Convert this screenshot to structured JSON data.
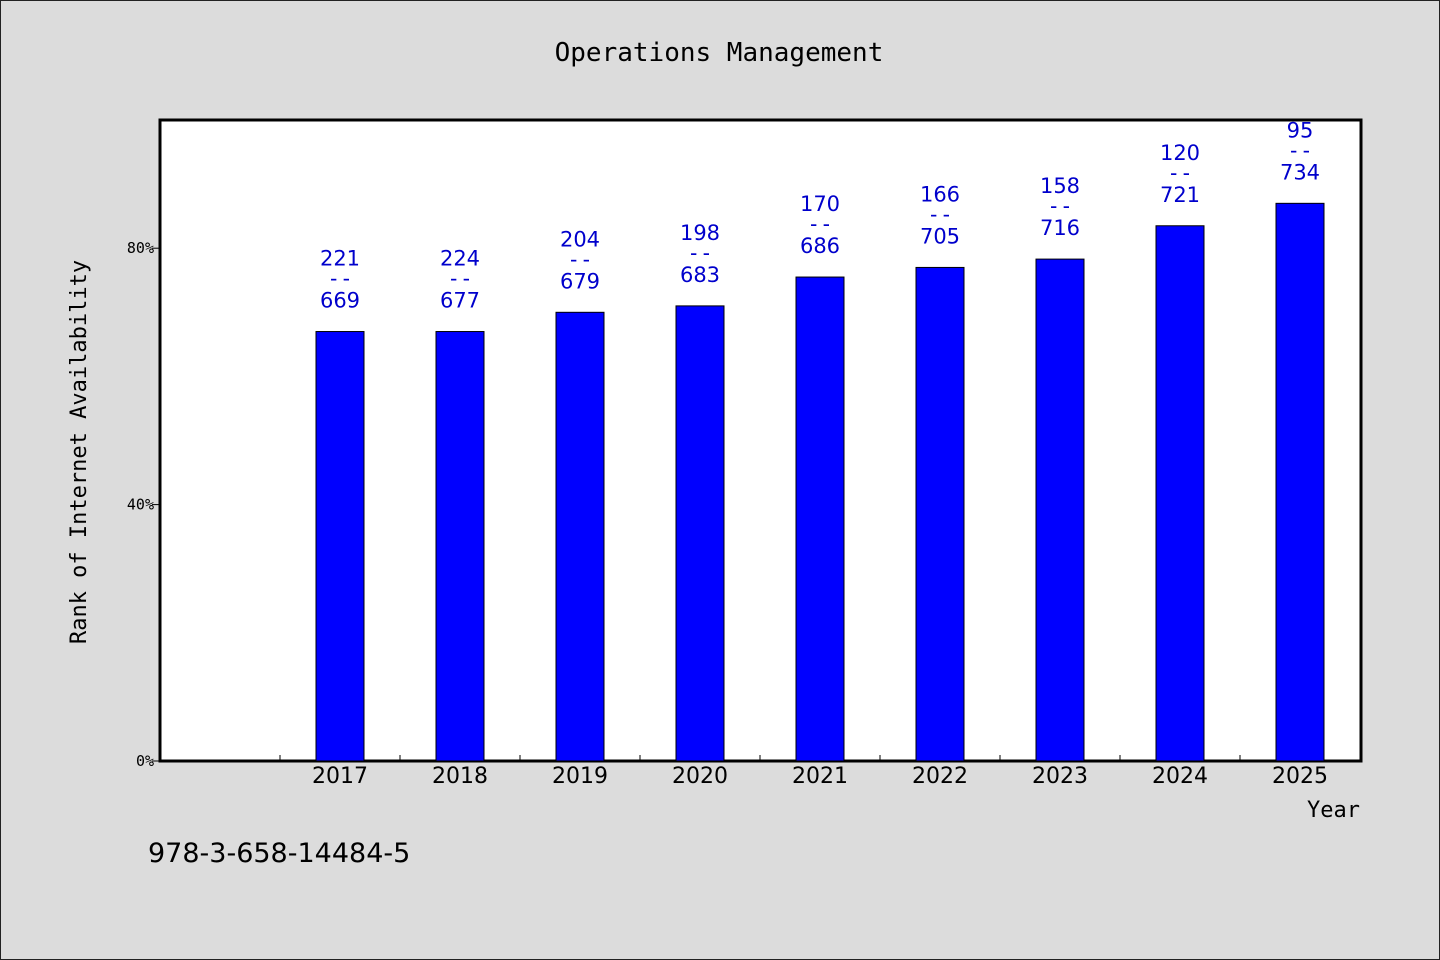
{
  "chart_data": {
    "type": "bar",
    "title": "Operations Management",
    "xlabel": "Year",
    "ylabel": "Rank of Internet Availability",
    "categories": [
      "2017",
      "2018",
      "2019",
      "2020",
      "2021",
      "2022",
      "2023",
      "2024",
      "2025"
    ],
    "values": [
      67,
      67,
      70,
      71,
      75.5,
      77,
      78.3,
      83.5,
      87
    ],
    "value_unit": "%",
    "ylim": [
      0,
      100
    ],
    "yticks": [
      0,
      40,
      80
    ],
    "ytick_labels": [
      "0%",
      "40%",
      "80%"
    ],
    "bar_labels": [
      {
        "top": "221",
        "sep": "--",
        "bottom": "669"
      },
      {
        "top": "224",
        "sep": "--",
        "bottom": "677"
      },
      {
        "top": "204",
        "sep": "--",
        "bottom": "679"
      },
      {
        "top": "198",
        "sep": "--",
        "bottom": "683"
      },
      {
        "top": "170",
        "sep": "--",
        "bottom": "686"
      },
      {
        "top": "166",
        "sep": "--",
        "bottom": "705"
      },
      {
        "top": "158",
        "sep": "--",
        "bottom": "716"
      },
      {
        "top": "120",
        "sep": "--",
        "bottom": "721"
      },
      {
        "top": "95",
        "sep": "--",
        "bottom": "734"
      }
    ],
    "bar_color": "#0000ff",
    "label_color": "#0000cc",
    "grid": false,
    "legend": "none"
  },
  "footer_text": "978-3-658-14484-5"
}
